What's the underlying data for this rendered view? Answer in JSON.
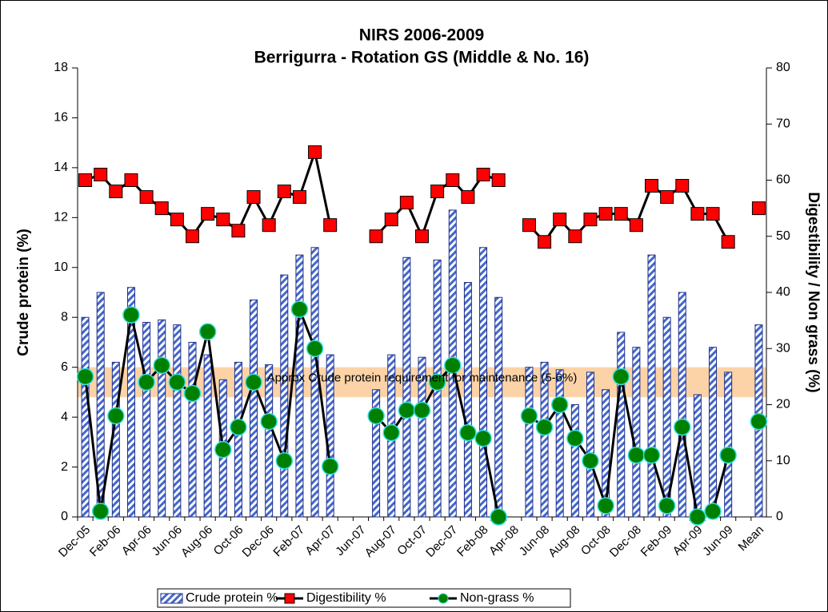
{
  "chart_data": {
    "type": "bar_line",
    "title": "NIRS 2006-2009",
    "subtitle": "Berrigurra - Rotation GS (Middle & No. 16)",
    "ylabel": "Crude protein (%)",
    "y2label": "Digestibility / Non grass (%)",
    "categories": [
      "Dec-05",
      null,
      "Feb-06",
      null,
      "Apr-06",
      null,
      "Jun-06",
      null,
      "Aug-06",
      null,
      "Oct-06",
      null,
      "Dec-06",
      null,
      "Feb-07",
      null,
      "Apr-07",
      null,
      "Jun-07",
      null,
      "Aug-07",
      null,
      "Oct-07",
      null,
      "Dec-07",
      null,
      "Feb-08",
      null,
      "Apr-08",
      null,
      "Jun-08",
      null,
      "Aug-08",
      null,
      "Oct-08",
      null,
      "Dec-08",
      null,
      "Feb-09",
      null,
      "Apr-09",
      null,
      "Jun-09",
      null,
      "Mean"
    ],
    "series": [
      {
        "name": "Crude protein %",
        "type": "bar",
        "axis": "y",
        "color": "#3355aa",
        "values": [
          8.0,
          9.0,
          6.2,
          9.2,
          7.8,
          7.9,
          7.7,
          7.0,
          6.5,
          5.5,
          6.2,
          8.7,
          6.1,
          9.7,
          10.5,
          10.8,
          6.5,
          null,
          null,
          5.1,
          6.5,
          10.4,
          6.4,
          10.3,
          12.3,
          9.4,
          10.8,
          8.8,
          null,
          6.0,
          6.2,
          5.9,
          4.5,
          5.8,
          5.1,
          7.4,
          6.8,
          10.5,
          8.0,
          9.0,
          4.9,
          6.8,
          5.8,
          null,
          7.7
        ]
      },
      {
        "name": "Digestibility %",
        "type": "line",
        "axis": "y2",
        "color": "#ff0000",
        "values": [
          60,
          61,
          58,
          60,
          57,
          55,
          53,
          50,
          54,
          53,
          51,
          57,
          52,
          58,
          57,
          65,
          52,
          null,
          null,
          50,
          53,
          56,
          50,
          58,
          60,
          57,
          61,
          60,
          null,
          52,
          49,
          53,
          50,
          53,
          54,
          54,
          52,
          59,
          57,
          59,
          54,
          54,
          49,
          null,
          55
        ]
      },
      {
        "name": "Non-grass %",
        "type": "line",
        "axis": "y2",
        "color": "#008000",
        "values": [
          25,
          1,
          18,
          36,
          24,
          27,
          24,
          22,
          33,
          12,
          16,
          24,
          17,
          10,
          37,
          30,
          9,
          null,
          null,
          18,
          15,
          19,
          19,
          24,
          27,
          15,
          14,
          0,
          null,
          18,
          16,
          20,
          14,
          10,
          2,
          25,
          11,
          11,
          2,
          16,
          0,
          1,
          11,
          null,
          17
        ]
      }
    ],
    "ylim": [
      0,
      18
    ],
    "yticks": [
      0,
      2,
      4,
      6,
      8,
      10,
      12,
      14,
      16,
      18
    ],
    "y2lim": [
      0,
      80
    ],
    "y2ticks": [
      0,
      10,
      20,
      30,
      40,
      50,
      60,
      70,
      80
    ],
    "annotation": {
      "text": "Approx Crude protein requirement for maintenance  (5-6%)",
      "band": [
        4.8,
        6
      ],
      "color": "#fbc48a"
    },
    "legend": "bottom"
  }
}
